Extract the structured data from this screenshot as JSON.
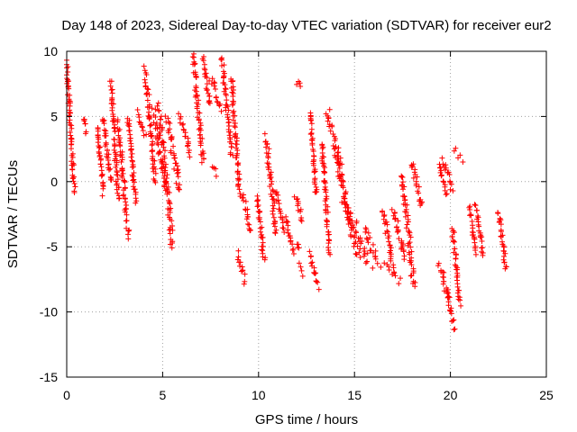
{
  "chart_data": {
    "type": "scatter",
    "title": "Day 148 of 2023, Sidereal Day-to-day VTEC variation (SDTVAR) for receiver eur2",
    "xlabel": "GPS time / hours",
    "ylabel": "SDTVAR / TECUs",
    "xlim": [
      0,
      25
    ],
    "ylim": [
      -15,
      10
    ],
    "xticks": [
      0,
      5,
      10,
      15,
      20,
      25
    ],
    "xtick_labels": [
      "0",
      "5",
      "10",
      "15",
      "20",
      "25"
    ],
    "yticks": [
      -15,
      -10,
      -5,
      0,
      5,
      10
    ],
    "ytick_labels": [
      "-15",
      "-10",
      "-5",
      "0",
      "5",
      "10"
    ],
    "grid": true,
    "marker": "+",
    "marker_color": "#ff0000",
    "segments": [
      {
        "x": [
          0.0,
          0.4
        ],
        "y": [
          9.2,
          -0.8
        ]
      },
      {
        "x": [
          0.9,
          1.0
        ],
        "y": [
          4.9,
          3.8
        ]
      },
      {
        "x": [
          1.6,
          1.9
        ],
        "y": [
          4.2,
          -0.8
        ]
      },
      {
        "x": [
          1.9,
          2.3
        ],
        "y": [
          5.0,
          0.0
        ]
      },
      {
        "x": [
          2.3,
          2.7
        ],
        "y": [
          7.6,
          -1.5
        ]
      },
      {
        "x": [
          2.7,
          3.2
        ],
        "y": [
          4.5,
          -4.2
        ]
      },
      {
        "x": [
          3.2,
          3.6
        ],
        "y": [
          5.0,
          -1.5
        ]
      },
      {
        "x": [
          3.7,
          4.1
        ],
        "y": [
          5.3,
          3.5
        ]
      },
      {
        "x": [
          4.1,
          4.6
        ],
        "y": [
          8.6,
          0.0
        ]
      },
      {
        "x": [
          4.5,
          5.2
        ],
        "y": [
          5.5,
          -0.8
        ]
      },
      {
        "x": [
          4.8,
          5.5
        ],
        "y": [
          5.8,
          -5.0
        ]
      },
      {
        "x": [
          5.2,
          5.9
        ],
        "y": [
          5.0,
          -0.8
        ]
      },
      {
        "x": [
          5.9,
          6.5
        ],
        "y": [
          5.2,
          2.0
        ]
      },
      {
        "x": [
          6.6,
          7.1
        ],
        "y": [
          9.8,
          1.5
        ]
      },
      {
        "x": [
          7.1,
          7.5
        ],
        "y": [
          9.5,
          5.8
        ]
      },
      {
        "x": [
          7.5,
          8.0
        ],
        "y": [
          8.0,
          5.5
        ]
      },
      {
        "x": [
          7.6,
          7.8
        ],
        "y": [
          1.2,
          0.6
        ]
      },
      {
        "x": [
          8.1,
          8.6
        ],
        "y": [
          9.4,
          2.0
        ]
      },
      {
        "x": [
          8.6,
          9.0
        ],
        "y": [
          8.0,
          -1.0
        ]
      },
      {
        "x": [
          8.9,
          9.3
        ],
        "y": [
          -5.5,
          -7.6
        ]
      },
      {
        "x": [
          9.2,
          9.6
        ],
        "y": [
          -1.0,
          -4.0
        ]
      },
      {
        "x": [
          9.9,
          10.3
        ],
        "y": [
          -1.0,
          -6.0
        ]
      },
      {
        "x": [
          10.4,
          10.9
        ],
        "y": [
          3.5,
          -4.0
        ]
      },
      {
        "x": [
          10.9,
          11.3
        ],
        "y": [
          -0.6,
          -3.6
        ]
      },
      {
        "x": [
          11.4,
          11.8
        ],
        "y": [
          -2.8,
          -5.5
        ]
      },
      {
        "x": [
          11.9,
          12.3
        ],
        "y": [
          -1.0,
          -3.0
        ]
      },
      {
        "x": [
          12.0,
          12.2
        ],
        "y": [
          7.6,
          7.3
        ]
      },
      {
        "x": [
          12.0,
          12.1
        ],
        "y": [
          -4.7,
          -5.0
        ]
      },
      {
        "x": [
          12.1,
          12.3
        ],
        "y": [
          -6.5,
          -7.2
        ]
      },
      {
        "x": [
          12.7,
          13.0
        ],
        "y": [
          5.3,
          -1.0
        ]
      },
      {
        "x": [
          12.7,
          13.1
        ],
        "y": [
          -5.5,
          -8.0
        ]
      },
      {
        "x": [
          13.3,
          13.7
        ],
        "y": [
          3.0,
          -5.5
        ]
      },
      {
        "x": [
          13.6,
          14.3
        ],
        "y": [
          5.5,
          0.0
        ]
      },
      {
        "x": [
          14.1,
          14.8
        ],
        "y": [
          2.5,
          -3.5
        ]
      },
      {
        "x": [
          14.4,
          15.2
        ],
        "y": [
          -1.0,
          -6.0
        ]
      },
      {
        "x": [
          14.8,
          15.8
        ],
        "y": [
          -2.5,
          -6.5
        ]
      },
      {
        "x": [
          15.5,
          16.3
        ],
        "y": [
          -3.5,
          -6.5
        ]
      },
      {
        "x": [
          16.5,
          17.0
        ],
        "y": [
          -2.2,
          -6.5
        ]
      },
      {
        "x": [
          16.6,
          17.4
        ],
        "y": [
          -6.0,
          -7.6
        ]
      },
      {
        "x": [
          17.0,
          17.6
        ],
        "y": [
          -2.0,
          -6.0
        ]
      },
      {
        "x": [
          17.5,
          18.1
        ],
        "y": [
          0.5,
          -8.0
        ]
      },
      {
        "x": [
          18.0,
          18.5
        ],
        "y": [
          1.5,
          -2.0
        ]
      },
      {
        "x": [
          19.4,
          19.8
        ],
        "y": [
          1.3,
          -1.0
        ]
      },
      {
        "x": [
          19.6,
          20.1
        ],
        "y": [
          1.8,
          -0.5
        ]
      },
      {
        "x": [
          19.4,
          19.9
        ],
        "y": [
          -6.2,
          -9.0
        ]
      },
      {
        "x": [
          19.8,
          20.2
        ],
        "y": [
          -8.5,
          -11.2
        ]
      },
      {
        "x": [
          20.1,
          20.5
        ],
        "y": [
          -3.5,
          -9.5
        ]
      },
      {
        "x": [
          20.2,
          20.6
        ],
        "y": [
          2.5,
          1.6
        ]
      },
      {
        "x": [
          21.0,
          21.3
        ],
        "y": [
          -2.0,
          -5.5
        ]
      },
      {
        "x": [
          21.3,
          21.7
        ],
        "y": [
          -1.8,
          -5.5
        ]
      },
      {
        "x": [
          22.5,
          22.9
        ],
        "y": [
          -2.3,
          -6.8
        ]
      }
    ]
  }
}
